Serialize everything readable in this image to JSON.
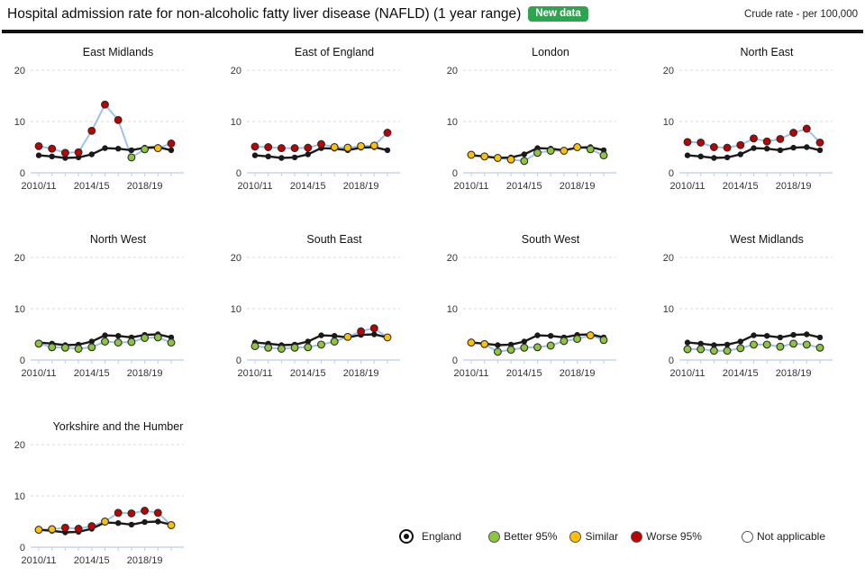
{
  "header": {
    "title": "Hospital admission rate for non-alcoholic fatty liver disease (NAFLD) (1 year range)",
    "badge": "New data",
    "unit_label": "Crude rate - per 100,000"
  },
  "chart_data": {
    "type": "line",
    "x": [
      "2010/11",
      "2011/12",
      "2012/13",
      "2013/14",
      "2014/15",
      "2015/16",
      "2016/17",
      "2017/18",
      "2018/19",
      "2019/20",
      "2020/21"
    ],
    "x_tick_indices": [
      0,
      4,
      8
    ],
    "x_tick_labels": [
      "2010/11",
      "2014/15",
      "2018/19"
    ],
    "ylim": [
      0,
      20
    ],
    "yticks": [
      0,
      10,
      20
    ],
    "ylabel": "Crude rate - per 100,000",
    "england_series": {
      "name": "England",
      "values": [
        3.4,
        3.2,
        2.9,
        3.0,
        3.6,
        4.8,
        4.7,
        4.4,
        4.9,
        5.0,
        4.4
      ]
    },
    "regions": [
      {
        "name": "East Midlands",
        "values": [
          5.2,
          4.7,
          3.9,
          4.0,
          8.2,
          13.3,
          10.3,
          3.0,
          4.6,
          4.8,
          5.7
        ],
        "status": [
          "worse",
          "worse",
          "worse",
          "worse",
          "worse",
          "worse",
          "worse",
          "better",
          "better",
          "similar",
          "worse"
        ]
      },
      {
        "name": "East of England",
        "values": [
          5.1,
          5.0,
          4.8,
          4.8,
          4.9,
          5.6,
          5.0,
          4.9,
          5.2,
          5.3,
          7.8
        ],
        "status": [
          "worse",
          "worse",
          "worse",
          "worse",
          "worse",
          "worse",
          "similar",
          "similar",
          "similar",
          "similar",
          "worse"
        ]
      },
      {
        "name": "London",
        "values": [
          3.5,
          3.2,
          2.9,
          2.6,
          2.3,
          3.9,
          4.3,
          4.3,
          5.0,
          4.6,
          3.4
        ],
        "status": [
          "similar",
          "similar",
          "similar",
          "similar",
          "better",
          "better",
          "better",
          "similar",
          "similar",
          "better",
          "better"
        ]
      },
      {
        "name": "North East",
        "values": [
          6.0,
          5.9,
          5.0,
          4.9,
          5.4,
          6.7,
          6.1,
          6.6,
          7.8,
          8.6,
          5.9
        ],
        "status": [
          "worse",
          "worse",
          "worse",
          "worse",
          "worse",
          "worse",
          "worse",
          "worse",
          "worse",
          "worse",
          "worse"
        ]
      },
      {
        "name": "North West",
        "values": [
          3.2,
          2.5,
          2.4,
          2.2,
          2.5,
          3.6,
          3.4,
          3.5,
          4.3,
          4.4,
          3.4
        ],
        "status": [
          "better",
          "better",
          "better",
          "better",
          "better",
          "better",
          "better",
          "better",
          "better",
          "better",
          "better"
        ]
      },
      {
        "name": "South East",
        "values": [
          2.7,
          2.4,
          2.2,
          2.4,
          2.5,
          3.0,
          3.6,
          4.5,
          5.6,
          6.2,
          4.4
        ],
        "status": [
          "better",
          "better",
          "better",
          "better",
          "better",
          "better",
          "better",
          "similar",
          "worse",
          "worse",
          "similar"
        ]
      },
      {
        "name": "South West",
        "values": [
          3.4,
          3.1,
          1.6,
          2.0,
          2.4,
          2.5,
          2.8,
          3.7,
          4.1,
          4.8,
          3.9
        ],
        "status": [
          "similar",
          "similar",
          "better",
          "better",
          "better",
          "better",
          "better",
          "better",
          "better",
          "similar",
          "better"
        ]
      },
      {
        "name": "West Midlands",
        "values": [
          2.1,
          2.1,
          1.8,
          1.8,
          2.3,
          3.0,
          3.0,
          2.6,
          3.2,
          3.0,
          2.4
        ],
        "status": [
          "better",
          "better",
          "better",
          "better",
          "better",
          "better",
          "better",
          "better",
          "better",
          "better",
          "better"
        ]
      },
      {
        "name": "Yorkshire and the Humber",
        "values": [
          3.4,
          3.5,
          3.8,
          3.6,
          4.1,
          5.0,
          6.7,
          6.6,
          7.1,
          6.7,
          4.3
        ],
        "status": [
          "similar",
          "similar",
          "worse",
          "worse",
          "worse",
          "similar",
          "worse",
          "worse",
          "worse",
          "worse",
          "similar"
        ]
      }
    ],
    "colors": {
      "england": "#1a1a1a",
      "region_line": "#9DC3E6",
      "better": "#8CC63E",
      "similar": "#FFC000",
      "worse": "#C00000",
      "not_applicable": "#FFFFFF",
      "badge_green": "#2EA44F"
    }
  },
  "legend": {
    "items": [
      {
        "key": "england",
        "label": "England"
      },
      {
        "key": "better",
        "label": "Better 95%"
      },
      {
        "key": "similar",
        "label": "Similar"
      },
      {
        "key": "worse",
        "label": "Worse 95%"
      },
      {
        "key": "not_applicable",
        "label": "Not applicable"
      }
    ]
  }
}
